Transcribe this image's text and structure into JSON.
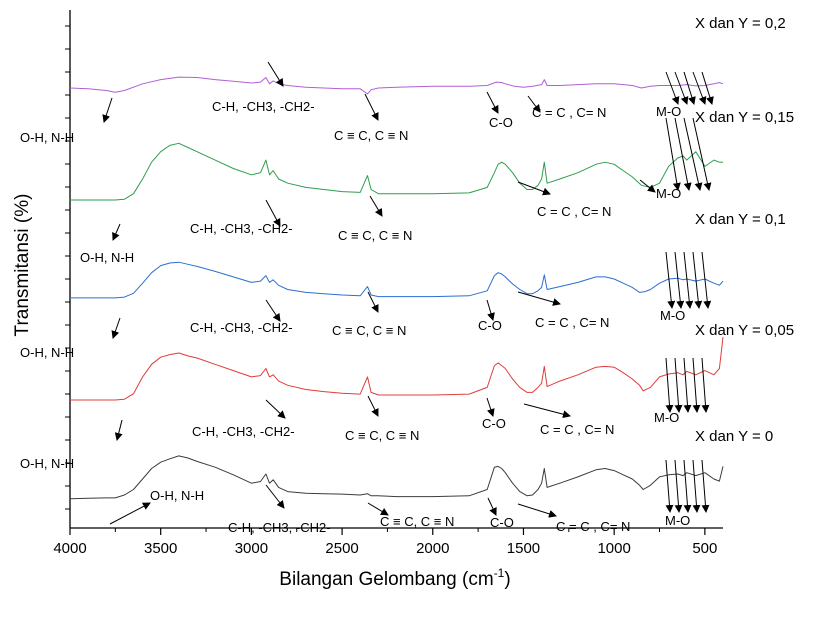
{
  "chart_data": {
    "type": "line",
    "xlabel": "Bilangan Gelombang (cm",
    "xlabel_sup": "-1",
    "xlabel_tail": ")",
    "ylabel": "Transmitansi (%)",
    "xlim": [
      4000,
      400
    ],
    "x_reversed": true,
    "x_ticks": [
      4000,
      3500,
      3000,
      2500,
      2000,
      1500,
      1000,
      500
    ],
    "y_ticks_labeled": false,
    "series": [
      {
        "name": "X dan Y = 0,2",
        "color": "#b05fd6",
        "x": [
          4000,
          3900,
          3800,
          3750,
          3700,
          3600,
          3500,
          3400,
          3300,
          3200,
          3100,
          3000,
          2950,
          2920,
          2900,
          2880,
          2850,
          2800,
          2700,
          2600,
          2500,
          2400,
          2360,
          2340,
          2300,
          2200,
          2000,
          1800,
          1700,
          1650,
          1620,
          1600,
          1550,
          1500,
          1450,
          1400,
          1385,
          1370,
          1300,
          1200,
          1100,
          1000,
          950,
          900,
          850,
          800,
          750,
          700,
          650,
          600,
          550,
          500,
          450,
          420,
          400
        ],
        "y": [
          0.8,
          0.78,
          0.74,
          0.7,
          0.74,
          0.9,
          1.0,
          1.06,
          1.05,
          1.0,
          0.96,
          0.92,
          0.94,
          1.05,
          0.9,
          0.97,
          0.9,
          0.86,
          0.82,
          0.8,
          0.78,
          0.78,
          0.66,
          0.76,
          0.8,
          0.82,
          0.84,
          0.84,
          0.86,
          0.94,
          0.93,
          0.9,
          0.84,
          0.82,
          0.84,
          0.88,
          1.0,
          0.86,
          0.86,
          0.88,
          0.9,
          0.9,
          0.88,
          0.86,
          0.8,
          0.84,
          0.86,
          0.86,
          0.86,
          0.88,
          0.85,
          0.86,
          0.9,
          0.93,
          0.9
        ]
      },
      {
        "name": "X dan Y = 0,15",
        "color": "#2e9e4f",
        "x": [
          4000,
          3900,
          3800,
          3750,
          3700,
          3650,
          3600,
          3550,
          3500,
          3450,
          3400,
          3350,
          3300,
          3200,
          3100,
          3000,
          2950,
          2920,
          2900,
          2880,
          2850,
          2800,
          2700,
          2600,
          2500,
          2400,
          2360,
          2340,
          2300,
          2200,
          2000,
          1800,
          1700,
          1660,
          1640,
          1620,
          1600,
          1560,
          1520,
          1480,
          1450,
          1420,
          1400,
          1385,
          1370,
          1300,
          1200,
          1100,
          1050,
          1000,
          950,
          900,
          850,
          800,
          750,
          700,
          650,
          620,
          600,
          550,
          500,
          450,
          420,
          400
        ],
        "y": [
          0.8,
          0.8,
          0.8,
          0.8,
          0.82,
          0.95,
          1.3,
          1.7,
          1.95,
          2.1,
          2.15,
          2.05,
          1.95,
          1.75,
          1.55,
          1.4,
          1.45,
          1.75,
          1.4,
          1.5,
          1.3,
          1.2,
          1.1,
          1.05,
          1.0,
          0.98,
          1.38,
          1.05,
          0.95,
          0.95,
          0.95,
          0.97,
          1.1,
          1.45,
          1.65,
          1.7,
          1.65,
          1.45,
          1.2,
          1.05,
          1.05,
          1.15,
          1.3,
          1.7,
          1.2,
          1.3,
          1.45,
          1.65,
          1.7,
          1.65,
          1.5,
          1.35,
          1.15,
          1.1,
          1.2,
          1.6,
          1.8,
          1.85,
          1.75,
          1.95,
          1.6,
          1.75,
          1.7,
          1.7
        ]
      },
      {
        "name": "X dan Y = 0,1",
        "color": "#2c6fd1",
        "x": [
          4000,
          3900,
          3800,
          3750,
          3700,
          3650,
          3600,
          3550,
          3500,
          3450,
          3400,
          3350,
          3300,
          3200,
          3100,
          3000,
          2950,
          2920,
          2900,
          2880,
          2850,
          2800,
          2700,
          2600,
          2500,
          2400,
          2360,
          2340,
          2300,
          2200,
          2000,
          1800,
          1700,
          1660,
          1640,
          1620,
          1600,
          1560,
          1520,
          1480,
          1450,
          1420,
          1400,
          1385,
          1370,
          1300,
          1200,
          1100,
          1050,
          1000,
          950,
          900,
          860,
          830,
          800,
          750,
          700,
          650,
          620,
          600,
          550,
          500,
          450,
          420,
          400
        ],
        "y": [
          0.85,
          0.85,
          0.85,
          0.85,
          0.87,
          0.96,
          1.2,
          1.45,
          1.62,
          1.68,
          1.7,
          1.65,
          1.6,
          1.48,
          1.35,
          1.22,
          1.25,
          1.38,
          1.22,
          1.28,
          1.15,
          1.05,
          0.98,
          0.95,
          0.92,
          0.9,
          1.12,
          0.92,
          0.88,
          0.88,
          0.88,
          0.9,
          1.02,
          1.38,
          1.45,
          1.42,
          1.35,
          1.18,
          1.05,
          0.95,
          0.95,
          1.02,
          1.1,
          1.4,
          1.05,
          1.12,
          1.22,
          1.35,
          1.35,
          1.3,
          1.2,
          1.1,
          0.98,
          1.0,
          1.05,
          1.2,
          1.3,
          1.32,
          1.28,
          1.3,
          1.25,
          1.3,
          1.2,
          1.15,
          1.25
        ]
      },
      {
        "name": "X dan Y = 0,05",
        "color": "#e03c3c",
        "x": [
          4000,
          3900,
          3800,
          3750,
          3700,
          3650,
          3600,
          3550,
          3500,
          3450,
          3400,
          3350,
          3300,
          3200,
          3100,
          3000,
          2950,
          2920,
          2900,
          2880,
          2850,
          2800,
          2700,
          2600,
          2500,
          2400,
          2360,
          2340,
          2300,
          2200,
          2000,
          1800,
          1700,
          1660,
          1640,
          1620,
          1600,
          1560,
          1520,
          1480,
          1450,
          1420,
          1400,
          1385,
          1370,
          1300,
          1200,
          1100,
          1050,
          1000,
          950,
          900,
          860,
          840,
          800,
          750,
          700,
          650,
          620,
          600,
          550,
          500,
          450,
          420,
          400
        ],
        "y": [
          0.8,
          0.8,
          0.8,
          0.8,
          0.82,
          0.95,
          1.35,
          1.65,
          1.82,
          1.88,
          1.92,
          1.85,
          1.8,
          1.65,
          1.5,
          1.35,
          1.38,
          1.55,
          1.35,
          1.4,
          1.25,
          1.15,
          1.05,
          1.0,
          0.96,
          0.94,
          1.35,
          0.98,
          0.92,
          0.92,
          0.92,
          0.94,
          1.1,
          1.62,
          1.68,
          1.62,
          1.55,
          1.3,
          1.1,
          0.98,
          0.98,
          1.1,
          1.2,
          1.6,
          1.12,
          1.25,
          1.4,
          1.58,
          1.6,
          1.58,
          1.45,
          1.3,
          1.15,
          1.02,
          1.1,
          1.35,
          1.42,
          1.45,
          1.4,
          1.48,
          1.4,
          1.5,
          1.4,
          1.55,
          2.3
        ]
      },
      {
        "name": "X dan Y = 0",
        "color": "#3c3c3c",
        "x": [
          4000,
          3900,
          3800,
          3750,
          3700,
          3650,
          3600,
          3550,
          3500,
          3450,
          3400,
          3350,
          3300,
          3200,
          3100,
          3000,
          2950,
          2920,
          2900,
          2880,
          2850,
          2800,
          2700,
          2600,
          2500,
          2400,
          2360,
          2340,
          2300,
          2200,
          2000,
          1800,
          1700,
          1660,
          1640,
          1620,
          1600,
          1560,
          1520,
          1480,
          1450,
          1420,
          1400,
          1385,
          1370,
          1300,
          1200,
          1100,
          1050,
          1000,
          950,
          900,
          860,
          840,
          800,
          750,
          700,
          650,
          620,
          600,
          550,
          500,
          450,
          420,
          400
        ],
        "y": [
          0.83,
          0.84,
          0.85,
          0.85,
          0.92,
          1.05,
          1.3,
          1.55,
          1.7,
          1.78,
          1.85,
          1.8,
          1.72,
          1.58,
          1.4,
          1.2,
          1.24,
          1.42,
          1.2,
          1.28,
          1.1,
          1.0,
          0.96,
          0.95,
          0.94,
          0.92,
          0.95,
          0.9,
          0.9,
          0.88,
          0.88,
          0.9,
          1.05,
          1.58,
          1.6,
          1.55,
          1.45,
          1.2,
          1.0,
          0.9,
          0.92,
          1.05,
          1.2,
          1.55,
          1.1,
          1.2,
          1.35,
          1.52,
          1.55,
          1.5,
          1.4,
          1.3,
          1.15,
          1.05,
          1.15,
          1.35,
          1.4,
          1.42,
          1.38,
          1.45,
          1.38,
          1.45,
          1.3,
          1.25,
          1.6
        ]
      }
    ],
    "annotations": [
      {
        "text": "O-H, N-H",
        "x": 3820,
        "y": 0.2,
        "arrow_to": [
          3760,
          0.7
        ],
        "from": [
          3775,
          0.33
        ]
      },
      {
        "text": "C-H, -CH3, -CH2-",
        "x": 2900,
        "y": 0.3,
        "arrow_to": [
          2850,
          0.3
        ],
        "from": [
          2910,
          0.65
        ]
      },
      {
        "text": "C ≡ C, C ≡ N",
        "x": 2300,
        "y": 0.1,
        "arrow_to": [
          2320,
          0.22
        ],
        "from": [
          2350,
          0.45
        ]
      },
      {
        "text": "C-O",
        "x": 1560,
        "y": 0.12,
        "arrow_to": [
          1600,
          0.35
        ],
        "from": [
          1630,
          0.55
        ]
      },
      {
        "text": "C = C , C= N",
        "x": 1280,
        "y": 0.4,
        "arrow_to": [
          1450,
          0.48
        ],
        "from": [
          1500,
          0.62
        ]
      },
      {
        "text": "M-O",
        "x": 600,
        "y": 0.45,
        "arrow_to": [
          640,
          0.6
        ],
        "from": [
          660,
          0.82
        ]
      }
    ],
    "labels": {
      "oh_nh": "O-H, N-H",
      "ch": "C-H, -CH3, -CH2-",
      "cc": "C ≡ C, C ≡ N",
      "co": "C-O",
      "cn": "C = C , C= N",
      "mo": "M-O"
    }
  }
}
